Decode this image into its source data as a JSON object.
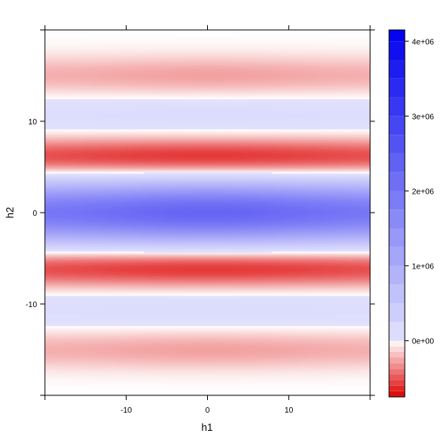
{
  "chart_data": {
    "type": "heatmap",
    "title": "",
    "xlabel": "h1",
    "ylabel": "h2",
    "xlim": [
      -20,
      20
    ],
    "ylim": [
      -20,
      20
    ],
    "x_ticks": [
      -10,
      0,
      10
    ],
    "y_ticks": [
      -10,
      0,
      10
    ],
    "colorbar": {
      "range": [
        -750000,
        4150000
      ],
      "ticks": [
        {
          "value": 0,
          "label": "0e+00"
        },
        {
          "value": 1000000,
          "label": "1e+06"
        },
        {
          "value": 2000000,
          "label": "2e+06"
        },
        {
          "value": 3000000,
          "label": "3e+06"
        },
        {
          "value": 4000000,
          "label": "4e+06"
        }
      ],
      "low_color": "#dd0000",
      "mid_color": "#ffffff",
      "high_color": "#0000ee",
      "neutral_color": "#e3e3fb"
    },
    "bands": [
      {
        "h2": 15,
        "value": -280000
      },
      {
        "h2": 10.5,
        "value": 150000
      },
      {
        "h2": 6,
        "value": -650000
      },
      {
        "h2": 0,
        "value": 2300000
      },
      {
        "h2": -6,
        "value": -650000
      },
      {
        "h2": -10.5,
        "value": 150000
      },
      {
        "h2": -15,
        "value": -280000
      }
    ]
  }
}
